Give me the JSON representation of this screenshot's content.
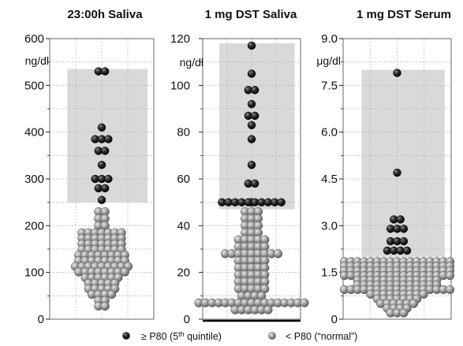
{
  "legend": {
    "high_prefix": "≥ P80 (5",
    "high_sup": "th",
    "high_suffix": " quintile)",
    "low_label": "< P80 (“normal”)",
    "high_color": "#202020",
    "low_color": "#9c9c9c"
  },
  "chart_data": [
    {
      "type": "scatter",
      "title": "23:00h Saliva",
      "unit": "ng/dl",
      "ylim": [
        0,
        600
      ],
      "yticks": [
        "0",
        "100",
        "200",
        "300",
        "400",
        "500",
        "600"
      ],
      "ytick_values": [
        0,
        100,
        200,
        300,
        400,
        500,
        600
      ],
      "minor_gridlines": [
        50,
        150,
        250,
        350,
        450,
        550
      ],
      "p80_band": [
        250,
        535
      ],
      "high_points": [
        530,
        515,
        410,
        385,
        375,
        370,
        360,
        350,
        330,
        300,
        295,
        290,
        280,
        270,
        255
      ],
      "low_bins": [
        {
          "y": 230,
          "n": 2
        },
        {
          "y": 215,
          "n": 2
        },
        {
          "y": 200,
          "n": 2
        },
        {
          "y": 185,
          "n": 7
        },
        {
          "y": 173,
          "n": 7
        },
        {
          "y": 161,
          "n": 7
        },
        {
          "y": 149,
          "n": 7
        },
        {
          "y": 137,
          "n": 8
        },
        {
          "y": 125,
          "n": 8
        },
        {
          "y": 113,
          "n": 9
        },
        {
          "y": 101,
          "n": 8
        },
        {
          "y": 89,
          "n": 6
        },
        {
          "y": 77,
          "n": 5
        },
        {
          "y": 65,
          "n": 5
        },
        {
          "y": 53,
          "n": 4
        },
        {
          "y": 40,
          "n": 2
        },
        {
          "y": 28,
          "n": 2
        }
      ],
      "grid": true
    },
    {
      "type": "scatter",
      "title": "1 mg DST Saliva",
      "unit": "ng/dl",
      "ylim": [
        0,
        120
      ],
      "yticks": [
        "0",
        "20",
        "40",
        "60",
        "80",
        "100",
        "120"
      ],
      "ytick_values": [
        0,
        20,
        40,
        60,
        80,
        100,
        120
      ],
      "minor_gridlines": [
        10,
        30,
        50,
        70,
        90,
        110
      ],
      "p80_band": [
        47,
        118
      ],
      "high_points": [
        117,
        105,
        98,
        95,
        92,
        87,
        85,
        83,
        77,
        66,
        58,
        55,
        50
      ],
      "baseline_row": {
        "y": 50,
        "n": 10
      },
      "low_bins": [
        {
          "y": 46,
          "n": 3
        },
        {
          "y": 43,
          "n": 3
        },
        {
          "y": 40,
          "n": 3
        },
        {
          "y": 37,
          "n": 3
        },
        {
          "y": 34,
          "n": 5
        },
        {
          "y": 31,
          "n": 5
        },
        {
          "y": 28,
          "n": 9
        },
        {
          "y": 25,
          "n": 5
        },
        {
          "y": 22,
          "n": 5
        },
        {
          "y": 19,
          "n": 5
        },
        {
          "y": 16,
          "n": 5
        },
        {
          "y": 13,
          "n": 5
        },
        {
          "y": 10,
          "n": 4
        },
        {
          "y": 7,
          "n": 17
        },
        {
          "y": 4,
          "n": 6
        }
      ],
      "grid": true
    },
    {
      "type": "scatter",
      "title": "1 mg DST Serum",
      "unit": "μg/dl",
      "ylim": [
        0,
        9
      ],
      "yticks": [
        "0",
        "1.5",
        "3.0",
        "4.5",
        "6.0",
        "7.5",
        "9.0"
      ],
      "ytick_values": [
        0,
        1.5,
        3,
        4.5,
        6,
        7.5,
        9
      ],
      "minor_gridlines": [
        0.75,
        2.25,
        3.75,
        5.25,
        6.75,
        8.25
      ],
      "p80_band": [
        2.0,
        8.0
      ],
      "high_points": [
        7.9,
        4.7,
        3.2,
        3.1,
        2.9,
        2.8,
        2.7,
        2.5,
        2.4,
        2.3,
        2.2,
        2.1,
        2.05,
        2.0
      ],
      "low_bins": [
        {
          "y": 1.85,
          "n": 17
        },
        {
          "y": 1.7,
          "n": 17
        },
        {
          "y": 1.55,
          "n": 17
        },
        {
          "y": 1.4,
          "n": 17
        },
        {
          "y": 1.25,
          "n": 13
        },
        {
          "y": 1.1,
          "n": 13
        },
        {
          "y": 0.95,
          "n": 17
        },
        {
          "y": 0.8,
          "n": 9
        },
        {
          "y": 0.65,
          "n": 7
        },
        {
          "y": 0.5,
          "n": 6
        },
        {
          "y": 0.35,
          "n": 4
        },
        {
          "y": 0.2,
          "n": 3
        }
      ],
      "grid": true
    }
  ]
}
